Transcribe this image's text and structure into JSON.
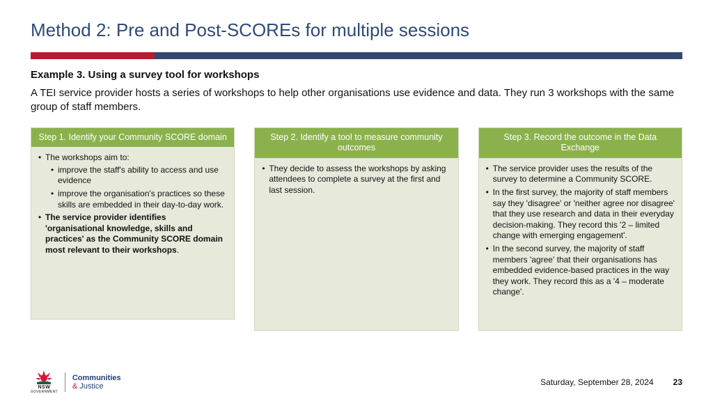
{
  "colors": {
    "title": "#2f4a78",
    "bar_main": "#33486e",
    "bar_accent": "#b31d33",
    "col_header_bg": "#8bb14d",
    "col_header_text": "#ffffff",
    "col_body_bg": "#e7eadb",
    "col_border": "#cfd6bd",
    "dept_blue": "#1e4079",
    "amp_red": "#b31d33"
  },
  "title": "Method 2: Pre and Post-SCOREs for multiple sessions",
  "example": {
    "heading": "Example 3. Using a survey tool for workshops",
    "body": "A TEI service provider hosts a series of workshops to help other organisations use evidence and data. They run 3 workshops with the same group of staff members."
  },
  "steps": [
    {
      "header": "Step 1. Identify your Community SCORE domain",
      "items": [
        {
          "text": "The workshops aim to:",
          "bold": false,
          "sub": [
            "improve the staff's ability to access and use evidence",
            "improve the organisation's practices so these skills are embedded in their day-to-day work."
          ]
        },
        {
          "text": "The service provider identifies 'organisational knowledge, skills and practices' as the Community SCORE domain most relevant to their workshops",
          "bold": true,
          "trailing_period": true
        }
      ]
    },
    {
      "header": "Step 2. Identify a tool to measure community outcomes",
      "items": [
        {
          "text": "They decide to assess the workshops by asking attendees to complete a survey at the first and last session.",
          "bold": false
        }
      ]
    },
    {
      "header": "Step 3. Record the outcome in the Data Exchange",
      "items": [
        {
          "text": "The service provider uses the results of the survey to determine a Community SCORE.",
          "bold": false
        },
        {
          "text": "In the first survey, the majority of staff members say they 'disagree' or 'neither agree nor disagree' that they use research and data in their everyday decision-making. They record this '2 – limited change with emerging engagement'.",
          "bold": false
        },
        {
          "text": "In the second survey, the majority of staff members 'agree' that their organisations has embedded evidence-based practices in the way they work. They record this as a '4 – moderate change'.",
          "bold": false
        }
      ]
    }
  ],
  "footer": {
    "nsw": "NSW",
    "gov": "GOVERNMENT",
    "dept_top": "Communities",
    "amp": "&",
    "dept_bot": "Justice",
    "date": "Saturday, September 28, 2024",
    "page": "23"
  }
}
